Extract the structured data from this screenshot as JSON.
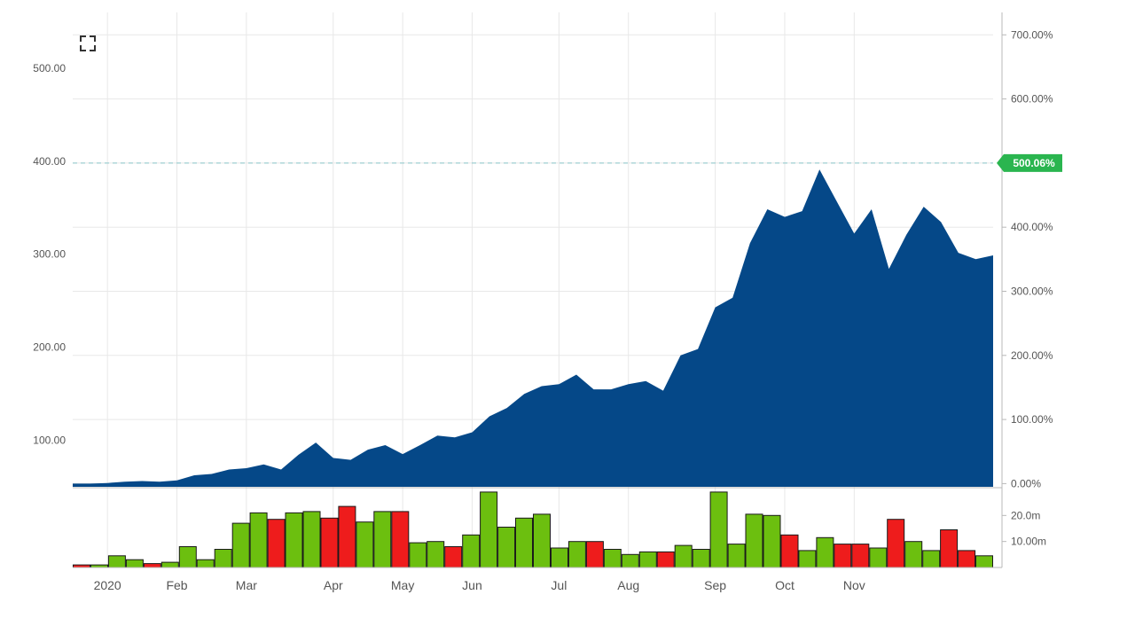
{
  "controls": {
    "expand_icon": "expand-icon"
  },
  "colors": {
    "area_fill": "#054888",
    "volume_up": "#6cbf0f",
    "volume_down": "#ee1c1c",
    "reference_line": "#9fcfd2",
    "last_value_badge": "#2ab54f"
  },
  "chart_data": {
    "type": "area",
    "title": "",
    "xlabel": "",
    "ylabel": "",
    "grid": true,
    "price_axis": {
      "ticks": [
        "100.00",
        "200.00",
        "300.00",
        "400.00",
        "500.00"
      ],
      "ylim": [
        50,
        560
      ]
    },
    "percent_axis": {
      "ticks": [
        "0.00%",
        "100.00%",
        "200.00%",
        "300.00%",
        "400.00%",
        "500.00%",
        "600.00%",
        "700.00%"
      ],
      "ylim": [
        -5,
        735
      ]
    },
    "x_tick_labels": [
      "2020",
      "Feb",
      "Mar",
      "Apr",
      "May",
      "Jun",
      "Jul",
      "Aug",
      "Sep",
      "Oct",
      "Nov"
    ],
    "x_tick_weeks": [
      2,
      6,
      10,
      15,
      19,
      23,
      28,
      32,
      37,
      41,
      45
    ],
    "reference_line_percent": 500.06,
    "last_value_label": "500.06%",
    "series": [
      {
        "values": [
          0,
          0,
          1,
          3,
          4,
          3,
          5,
          13,
          15,
          22,
          24,
          30,
          22,
          45,
          64,
          40,
          37,
          53,
          60,
          46,
          60,
          75,
          72,
          80,
          105,
          118,
          140,
          152,
          155,
          170,
          147,
          147,
          155,
          160,
          145,
          200,
          210,
          275,
          290,
          375,
          428,
          416,
          425,
          490,
          440,
          390,
          428,
          335,
          388,
          432,
          408,
          360,
          350,
          356
        ]
      }
    ],
    "volume": {
      "ticks": [
        "10.00m",
        "20.0m"
      ],
      "ylim": [
        0,
        30
      ],
      "values": [
        1,
        1,
        4.5,
        3,
        1.5,
        2,
        8,
        3,
        7,
        17,
        21,
        18.5,
        21,
        21.5,
        19,
        23.5,
        17.5,
        21.5,
        21.5,
        9.5,
        10,
        8,
        12.5,
        29,
        15.5,
        19,
        20.5,
        7.5,
        10,
        10,
        7,
        5,
        6,
        6,
        8.5,
        7,
        29,
        9,
        20.5,
        20,
        12.5,
        6.5,
        11.5,
        9,
        9,
        7.5,
        18.5,
        10,
        6.5,
        14.5,
        6.5,
        4.5
      ],
      "direction": [
        "down",
        "up",
        "up",
        "up",
        "down",
        "up",
        "up",
        "up",
        "up",
        "up",
        "up",
        "down",
        "up",
        "up",
        "down",
        "down",
        "up",
        "up",
        "down",
        "up",
        "up",
        "down",
        "up",
        "up",
        "up",
        "up",
        "up",
        "up",
        "up",
        "down",
        "up",
        "up",
        "up",
        "down",
        "up",
        "up",
        "up",
        "up",
        "up",
        "up",
        "down",
        "up",
        "up",
        "down",
        "down",
        "up",
        "down",
        "up",
        "up",
        "down",
        "down",
        "up"
      ]
    }
  }
}
